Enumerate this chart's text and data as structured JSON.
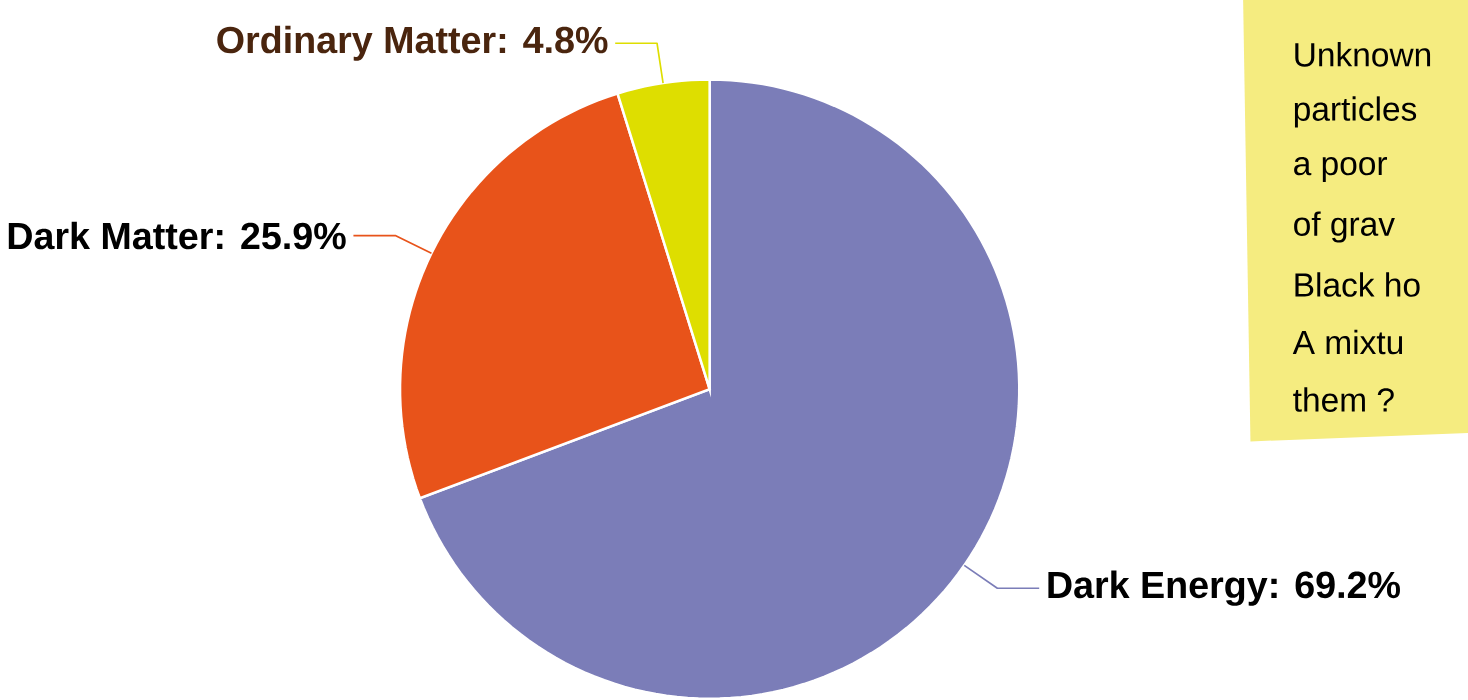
{
  "chart_data": {
    "type": "pie",
    "categories": [
      "Dark Energy",
      "Dark Matter",
      "Ordinary Matter"
    ],
    "values": [
      69.2,
      25.9,
      4.8
    ],
    "colors": [
      "#7b7db8",
      "#e8531a",
      "#dede00"
    ],
    "value_labels": [
      ": 69.2%",
      ": 25.9%",
      ": 4.8%"
    ],
    "annotations": [
      "Unknown",
      "particles",
      "a poor",
      "of grav",
      "Black ho",
      "A mixtu",
      "them ?"
    ]
  }
}
